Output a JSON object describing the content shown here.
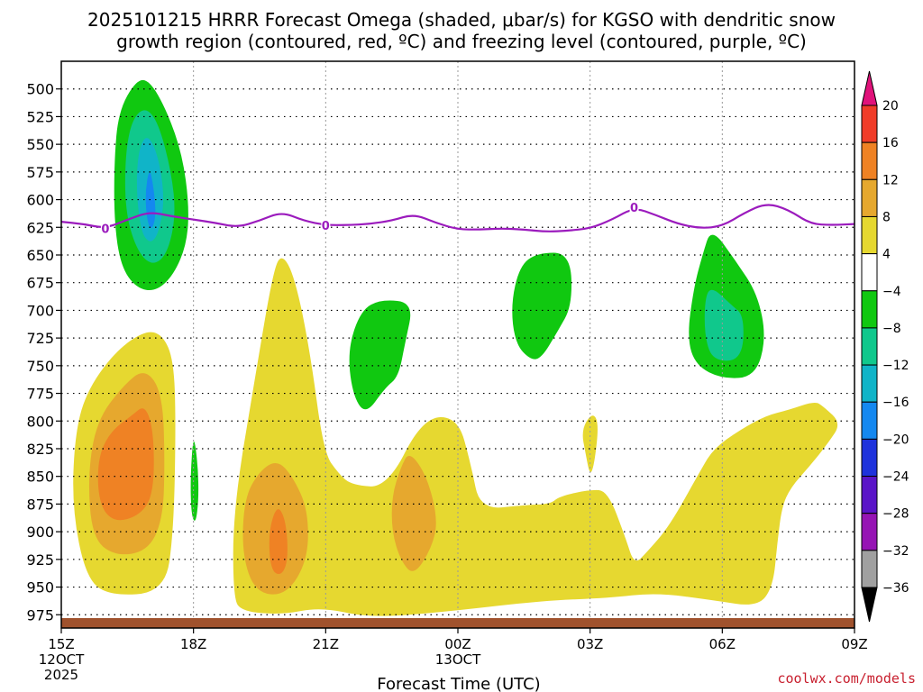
{
  "chart_data": {
    "type": "time-height contour",
    "title_line1": "2025101215 HRRR Forecast Omega (shaded, μbar/s) for KGSO with dendritic snow",
    "title_line2": "growth region (contoured, red, ºC) and freezing level (contoured, purple, ºC)",
    "xlabel": "Forecast Time (UTC)",
    "credit": "coolwx.com/models",
    "x_range_hours": [
      0,
      18
    ],
    "x_ticks": [
      {
        "hour": 0,
        "label": "15Z",
        "sub1": "12OCT",
        "sub2": "2025"
      },
      {
        "hour": 3,
        "label": "18Z",
        "sub1": "",
        "sub2": ""
      },
      {
        "hour": 6,
        "label": "21Z",
        "sub1": "",
        "sub2": ""
      },
      {
        "hour": 9,
        "label": "00Z",
        "sub1": "13OCT",
        "sub2": ""
      },
      {
        "hour": 12,
        "label": "03Z",
        "sub1": "",
        "sub2": ""
      },
      {
        "hour": 15,
        "label": "06Z",
        "sub1": "",
        "sub2": ""
      },
      {
        "hour": 18,
        "label": "09Z",
        "sub1": "",
        "sub2": ""
      }
    ],
    "y_range_hpa": [
      475,
      987
    ],
    "y_ticks": [
      {
        "p": 500,
        "label": "500"
      },
      {
        "p": 525,
        "label": "525"
      },
      {
        "p": 550,
        "label": "550"
      },
      {
        "p": 575,
        "label": "575"
      },
      {
        "p": 600,
        "label": "600"
      },
      {
        "p": 625,
        "label": "625"
      },
      {
        "p": 650,
        "label": "650"
      },
      {
        "p": 675,
        "label": "675"
      },
      {
        "p": 700,
        "label": "700"
      },
      {
        "p": 725,
        "label": "725"
      },
      {
        "p": 750,
        "label": "750"
      },
      {
        "p": 775,
        "label": "775"
      },
      {
        "p": 800,
        "label": "800"
      },
      {
        "p": 825,
        "label": "825"
      },
      {
        "p": 850,
        "label": "850"
      },
      {
        "p": 875,
        "label": "875"
      },
      {
        "p": 900,
        "label": "900"
      },
      {
        "p": 925,
        "label": "925"
      },
      {
        "p": 950,
        "label": "950"
      },
      {
        "p": 975,
        "label": "975"
      }
    ],
    "colorbar": {
      "bins": [
        {
          "lo": 20,
          "hi": null,
          "color": "#e0127a"
        },
        {
          "lo": 16,
          "hi": 20,
          "color": "#f03c28"
        },
        {
          "lo": 12,
          "hi": 16,
          "color": "#ef8224"
        },
        {
          "lo": 8,
          "hi": 12,
          "color": "#e6a82e"
        },
        {
          "lo": 4,
          "hi": 8,
          "color": "#e6d830"
        },
        {
          "lo": -4,
          "hi": 4,
          "color": "#ffffff"
        },
        {
          "lo": -8,
          "hi": -4,
          "color": "#10c810"
        },
        {
          "lo": -12,
          "hi": -8,
          "color": "#10c88c"
        },
        {
          "lo": -16,
          "hi": -12,
          "color": "#10b4c8"
        },
        {
          "lo": -20,
          "hi": -16,
          "color": "#1488f0"
        },
        {
          "lo": -24,
          "hi": -20,
          "color": "#1e32dc"
        },
        {
          "lo": -28,
          "hi": -24,
          "color": "#5a14c8"
        },
        {
          "lo": -32,
          "hi": -28,
          "color": "#9614b4"
        },
        {
          "lo": -36,
          "hi": -32,
          "color": "#a0a0a0"
        },
        {
          "lo": null,
          "hi": -36,
          "color": "#000000"
        }
      ],
      "labels": [
        "20",
        "16",
        "12",
        "8",
        "4",
        "−4",
        "−8",
        "−12",
        "−16",
        "−20",
        "−24",
        "−28",
        "−32",
        "−36"
      ]
    },
    "freezing_level": {
      "color": "#9b1bbd",
      "label": "0",
      "points": [
        [
          0,
          620
        ],
        [
          0.5,
          622
        ],
        [
          1,
          626
        ],
        [
          1.5,
          618
        ],
        [
          2,
          611
        ],
        [
          2.5,
          615
        ],
        [
          3,
          618
        ],
        [
          3.5,
          621
        ],
        [
          4,
          625
        ],
        [
          4.5,
          619
        ],
        [
          5,
          611
        ],
        [
          5.5,
          619
        ],
        [
          6,
          623
        ],
        [
          6.5,
          623
        ],
        [
          7,
          622
        ],
        [
          7.5,
          619
        ],
        [
          8,
          613
        ],
        [
          8.5,
          621
        ],
        [
          9,
          627
        ],
        [
          9.5,
          627
        ],
        [
          10,
          626
        ],
        [
          10.5,
          627
        ],
        [
          11,
          629
        ],
        [
          11.5,
          628
        ],
        [
          12,
          626
        ],
        [
          12.5,
          618
        ],
        [
          13,
          607
        ],
        [
          13.5,
          614
        ],
        [
          14,
          622
        ],
        [
          14.5,
          626
        ],
        [
          15,
          624
        ],
        [
          15.5,
          612
        ],
        [
          16,
          603
        ],
        [
          16.5,
          609
        ],
        [
          17,
          622
        ],
        [
          17.5,
          623
        ],
        [
          18,
          622
        ]
      ],
      "label_points": [
        [
          1,
          626
        ],
        [
          6,
          623
        ],
        [
          13,
          607
        ]
      ]
    },
    "surface": {
      "color": "#a0522d",
      "pressure_top": 978
    },
    "shaded_regions": [
      {
        "name": "green-upper-west",
        "value_bin": "-8 to -4",
        "color": "#10c810",
        "points": [
          [
            1.7,
            492
          ],
          [
            2.0,
            492
          ],
          [
            2.4,
            520
          ],
          [
            2.75,
            560
          ],
          [
            2.9,
            605
          ],
          [
            2.85,
            640
          ],
          [
            2.55,
            668
          ],
          [
            2.15,
            683
          ],
          [
            1.7,
            680
          ],
          [
            1.35,
            660
          ],
          [
            1.2,
            620
          ],
          [
            1.2,
            565
          ],
          [
            1.3,
            520
          ]
        ]
      },
      {
        "name": "teal-upper-west",
        "value_bin": "-12 to -8",
        "color": "#10c88c",
        "points": [
          [
            1.9,
            516
          ],
          [
            2.2,
            530
          ],
          [
            2.5,
            575
          ],
          [
            2.6,
            615
          ],
          [
            2.4,
            650
          ],
          [
            2.05,
            660
          ],
          [
            1.7,
            645
          ],
          [
            1.45,
            610
          ],
          [
            1.45,
            560
          ],
          [
            1.6,
            528
          ]
        ]
      },
      {
        "name": "cyan-upper-west",
        "value_bin": "-16 to -12",
        "color": "#10b4c8",
        "points": [
          [
            1.95,
            540
          ],
          [
            2.2,
            560
          ],
          [
            2.35,
            600
          ],
          [
            2.2,
            632
          ],
          [
            2.0,
            640
          ],
          [
            1.8,
            628
          ],
          [
            1.7,
            590
          ],
          [
            1.75,
            555
          ]
        ]
      },
      {
        "name": "blue-upper-west",
        "value_bin": "-20 to -16",
        "color": "#1488f0",
        "points": [
          [
            2.0,
            570
          ],
          [
            2.1,
            590
          ],
          [
            2.15,
            615
          ],
          [
            2.05,
            628
          ],
          [
            1.95,
            620
          ],
          [
            1.9,
            595
          ]
        ]
      },
      {
        "name": "yellow-lower-west",
        "value_bin": "4 to 8",
        "color": "#e6d830",
        "points": [
          [
            1.9,
            718
          ],
          [
            2.3,
            722
          ],
          [
            2.55,
            745
          ],
          [
            2.6,
            800
          ],
          [
            2.55,
            900
          ],
          [
            2.35,
            955
          ],
          [
            1.05,
            958
          ],
          [
            0.55,
            940
          ],
          [
            0.25,
            880
          ],
          [
            0.3,
            815
          ],
          [
            0.55,
            775
          ],
          [
            1.2,
            738
          ]
        ]
      },
      {
        "name": "gold-lower-west",
        "value_bin": "8 to 12",
        "color": "#e6a82e",
        "points": [
          [
            1.9,
            752
          ],
          [
            2.3,
            775
          ],
          [
            2.35,
            840
          ],
          [
            2.3,
            890
          ],
          [
            1.95,
            918
          ],
          [
            1.2,
            922
          ],
          [
            0.7,
            905
          ],
          [
            0.6,
            850
          ],
          [
            0.8,
            800
          ],
          [
            1.4,
            768
          ]
        ]
      },
      {
        "name": "orange-lower-west",
        "value_bin": "12 to 16",
        "color": "#ef8224",
        "points": [
          [
            1.9,
            785
          ],
          [
            2.1,
            810
          ],
          [
            2.1,
            865
          ],
          [
            1.8,
            885
          ],
          [
            1.2,
            892
          ],
          [
            0.85,
            875
          ],
          [
            0.82,
            835
          ],
          [
            1.1,
            810
          ],
          [
            1.6,
            795
          ]
        ]
      },
      {
        "name": "green-narrow-west",
        "value_bin": "-8 to -4",
        "color": "#10c810",
        "points": [
          [
            3.0,
            810
          ],
          [
            3.1,
            840
          ],
          [
            3.12,
            870
          ],
          [
            3.05,
            893
          ],
          [
            2.95,
            885
          ],
          [
            2.93,
            850
          ]
        ]
      },
      {
        "name": "yellow-center",
        "value_bin": "4 to 8",
        "color": "#e6d830",
        "points": [
          [
            5.0,
            648
          ],
          [
            5.3,
            670
          ],
          [
            5.65,
            738
          ],
          [
            5.95,
            828
          ],
          [
            6.3,
            848
          ],
          [
            6.6,
            858
          ],
          [
            7.4,
            860
          ],
          [
            8.2,
            797
          ],
          [
            9.0,
            796
          ],
          [
            9.3,
            840
          ],
          [
            9.5,
            880
          ],
          [
            10.5,
            876
          ],
          [
            11.1,
            875
          ],
          [
            11.3,
            868
          ],
          [
            12.0,
            862
          ],
          [
            12.4,
            863
          ],
          [
            12.8,
            905
          ],
          [
            13.0,
            930
          ],
          [
            13.3,
            918
          ],
          [
            13.8,
            895
          ],
          [
            14.5,
            845
          ],
          [
            14.8,
            825
          ],
          [
            15.4,
            808
          ],
          [
            16.0,
            795
          ],
          [
            16.5,
            790
          ],
          [
            17.1,
            782
          ],
          [
            17.3,
            787
          ],
          [
            17.7,
            802
          ],
          [
            17.4,
            820
          ],
          [
            17.0,
            840
          ],
          [
            16.55,
            860
          ],
          [
            16.35,
            878
          ],
          [
            16.25,
            910
          ],
          [
            16.15,
            950
          ],
          [
            15.8,
            968
          ],
          [
            14.8,
            962
          ],
          [
            13.5,
            955
          ],
          [
            12.4,
            960
          ],
          [
            11.0,
            962
          ],
          [
            8.8,
            972
          ],
          [
            7.0,
            978
          ],
          [
            5.9,
            968
          ],
          [
            5.0,
            975
          ],
          [
            4.1,
            972
          ],
          [
            3.9,
            960
          ],
          [
            3.9,
            880
          ],
          [
            4.4,
            760
          ],
          [
            4.8,
            666
          ]
        ]
      },
      {
        "name": "gold-center-left",
        "value_bin": "8 to 12",
        "color": "#e6a82e",
        "points": [
          [
            4.9,
            835
          ],
          [
            5.25,
            850
          ],
          [
            5.6,
            880
          ],
          [
            5.6,
            925
          ],
          [
            5.1,
            958
          ],
          [
            4.4,
            955
          ],
          [
            4.1,
            920
          ],
          [
            4.15,
            870
          ],
          [
            4.5,
            845
          ]
        ]
      },
      {
        "name": "orange-center-left",
        "value_bin": "12 to 16",
        "color": "#ef8224",
        "points": [
          [
            4.9,
            875
          ],
          [
            5.1,
            890
          ],
          [
            5.15,
            925
          ],
          [
            5.0,
            940
          ],
          [
            4.75,
            935
          ],
          [
            4.7,
            900
          ]
        ]
      },
      {
        "name": "gold-center-right",
        "value_bin": "8 to 12",
        "color": "#e6a82e",
        "points": [
          [
            7.9,
            827
          ],
          [
            8.3,
            850
          ],
          [
            8.55,
            890
          ],
          [
            8.4,
            915
          ],
          [
            8.0,
            940
          ],
          [
            7.7,
            926
          ],
          [
            7.5,
            900
          ],
          [
            7.5,
            868
          ],
          [
            7.7,
            842
          ]
        ]
      },
      {
        "name": "green-mid",
        "value_bin": "-8 to -4",
        "color": "#10c810",
        "points": [
          [
            7.25,
            690
          ],
          [
            8.0,
            693
          ],
          [
            7.8,
            730
          ],
          [
            7.65,
            760
          ],
          [
            7.35,
            770
          ],
          [
            6.9,
            795
          ],
          [
            6.6,
            775
          ],
          [
            6.5,
            735
          ],
          [
            6.8,
            700
          ]
        ]
      },
      {
        "name": "green-east-1",
        "value_bin": "-8 to -4",
        "color": "#10c810",
        "points": [
          [
            10.8,
            648
          ],
          [
            11.55,
            648
          ],
          [
            11.6,
            695
          ],
          [
            11.25,
            720
          ],
          [
            10.9,
            743
          ],
          [
            10.65,
            745
          ],
          [
            10.3,
            730
          ],
          [
            10.2,
            695
          ],
          [
            10.4,
            660
          ]
        ]
      },
      {
        "name": "yellow-small-east",
        "value_bin": "4 to 8",
        "color": "#e6d830",
        "points": [
          [
            12.05,
            792
          ],
          [
            12.2,
            802
          ],
          [
            12.1,
            838
          ],
          [
            12.0,
            850
          ],
          [
            11.9,
            830
          ],
          [
            11.8,
            808
          ]
        ]
      },
      {
        "name": "green-east-2",
        "value_bin": "-8 to -4",
        "color": "#10c810",
        "points": [
          [
            14.75,
            625
          ],
          [
            15.3,
            655
          ],
          [
            15.8,
            685
          ],
          [
            16.0,
            725
          ],
          [
            15.75,
            760
          ],
          [
            15.0,
            762
          ],
          [
            14.4,
            750
          ],
          [
            14.2,
            725
          ],
          [
            14.35,
            680
          ],
          [
            14.55,
            650
          ]
        ]
      },
      {
        "name": "teal-east-2",
        "value_bin": "-12 to -8",
        "color": "#10c88c",
        "points": [
          [
            14.75,
            678
          ],
          [
            15.2,
            695
          ],
          [
            15.5,
            705
          ],
          [
            15.45,
            745
          ],
          [
            14.8,
            746
          ],
          [
            14.6,
            725
          ],
          [
            14.6,
            690
          ]
        ]
      }
    ]
  }
}
